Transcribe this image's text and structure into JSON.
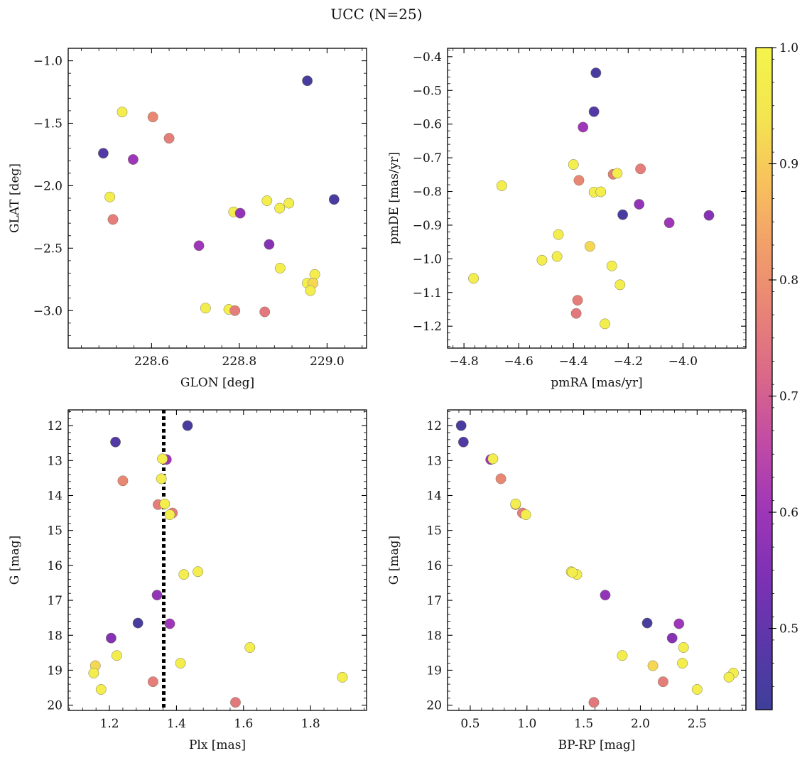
{
  "figure": {
    "title": "UCC (N=25)"
  },
  "colors": {
    "colormap": "plasma",
    "stops": [
      "#3e3f9a",
      "#5b37a9",
      "#7d31b4",
      "#9e36b8",
      "#c04aa6",
      "#d9678a",
      "#e88377",
      "#f29f6a",
      "#f8c25c",
      "#f3e64f",
      "#f4f44b"
    ],
    "reference_line": "#000000"
  },
  "chart_data": [
    {
      "type": "scatter",
      "xlabel": "GLON [deg]",
      "ylabel": "GLAT [deg]",
      "xlim": [
        228.41,
        229.09
      ],
      "ylim": [
        -3.3,
        -0.9
      ],
      "y_inverted": false,
      "xticks": [
        228.6,
        228.8,
        229.0
      ],
      "xtick_labels": [
        "228.6",
        "228.8",
        "229.0"
      ],
      "yticks": [
        -1.0,
        -1.5,
        -2.0,
        -2.5,
        -3.0
      ],
      "ytick_labels": [
        "−1.0",
        "−1.5",
        "−2.0",
        "−2.5",
        "−3.0"
      ],
      "x": [
        228.955,
        228.49,
        228.558,
        228.533,
        228.603,
        228.64,
        228.505,
        228.512,
        228.863,
        228.913,
        228.787,
        228.802,
        229.016,
        228.708,
        228.868,
        228.893,
        228.972,
        228.955,
        228.968,
        228.962,
        228.723,
        228.776,
        228.79,
        228.858,
        228.892
      ],
      "y": [
        -1.16,
        -1.74,
        -1.79,
        -1.41,
        -1.45,
        -1.62,
        -2.09,
        -2.27,
        -2.12,
        -2.14,
        -2.21,
        -2.22,
        -2.11,
        -2.48,
        -2.47,
        -2.66,
        -2.71,
        -2.78,
        -2.78,
        -2.84,
        -2.98,
        -2.99,
        -3.0,
        -3.01,
        -2.18
      ]
    },
    {
      "type": "scatter",
      "xlabel": "pmRA [mas/yr]",
      "ylabel": "pmDE [mas/yr]",
      "xlim": [
        -4.86,
        -3.77
      ],
      "ylim": [
        -1.265,
        -0.375
      ],
      "y_inverted": false,
      "xticks": [
        -4.8,
        -4.6,
        -4.4,
        -4.2,
        -4.0
      ],
      "xtick_labels": [
        "−4.8",
        "−4.6",
        "−4.4",
        "−4.2",
        "−4.0"
      ],
      "yticks": [
        -0.4,
        -0.5,
        -0.6,
        -0.7,
        -0.8,
        -0.9,
        -1.0,
        -1.1,
        -1.2
      ],
      "ytick_labels": [
        "−0.4",
        "−0.5",
        "−0.6",
        "−0.7",
        "−0.8",
        "−0.9",
        "−1.0",
        "−1.1",
        "−1.2"
      ],
      "x": [
        -4.318,
        -4.325,
        -4.365,
        -4.4,
        -4.38,
        -4.255,
        -4.24,
        -4.155,
        -4.662,
        -4.325,
        -4.3,
        -4.16,
        -4.22,
        -4.05,
        -3.905,
        -4.455,
        -4.46,
        -4.515,
        -4.34,
        -4.26,
        -4.765,
        -4.23,
        -4.385,
        -4.39,
        -4.285
      ],
      "y": [
        -0.448,
        -0.563,
        -0.609,
        -0.72,
        -0.767,
        -0.749,
        -0.746,
        -0.733,
        -0.783,
        -0.802,
        -0.801,
        -0.838,
        -0.869,
        -0.893,
        -0.871,
        -0.928,
        -0.993,
        -1.004,
        -0.963,
        -1.021,
        -1.058,
        -1.077,
        -1.123,
        -1.162,
        -1.193
      ]
    },
    {
      "type": "scatter",
      "xlabel": "Plx [mas]",
      "ylabel": "G [mag]",
      "xlim": [
        1.077,
        1.967
      ],
      "ylim": [
        11.55,
        20.15
      ],
      "y_inverted": true,
      "xticks": [
        1.2,
        1.4,
        1.6,
        1.8
      ],
      "xtick_labels": [
        "1.2",
        "1.4",
        "1.6",
        "1.8"
      ],
      "yticks": [
        12,
        13,
        14,
        15,
        16,
        17,
        18,
        19,
        20
      ],
      "ytick_labels": [
        "12",
        "13",
        "14",
        "15",
        "16",
        "17",
        "18",
        "19",
        "20"
      ],
      "reference_line_x": 1.362,
      "x": [
        1.433,
        1.218,
        1.37,
        1.355,
        1.24,
        1.345,
        1.365,
        1.388,
        1.38,
        1.464,
        1.422,
        1.342,
        1.285,
        1.38,
        1.205,
        1.222,
        1.619,
        1.412,
        1.158,
        1.153,
        1.895,
        1.175,
        1.33,
        1.576,
        1.358
      ],
      "y": [
        12.0,
        12.47,
        12.97,
        13.52,
        13.58,
        14.26,
        14.24,
        14.5,
        14.55,
        16.18,
        16.26,
        16.85,
        17.65,
        17.67,
        18.08,
        18.58,
        18.35,
        18.8,
        18.87,
        19.08,
        19.2,
        19.55,
        19.33,
        19.92,
        12.95
      ]
    },
    {
      "type": "scatter",
      "xlabel": "BP-RP [mag]",
      "ylabel": "G [mag]",
      "xlim": [
        0.3,
        2.93
      ],
      "ylim": [
        11.55,
        20.15
      ],
      "y_inverted": true,
      "xticks": [
        0.5,
        1.0,
        1.5,
        2.0,
        2.5
      ],
      "xtick_labels": [
        "0.5",
        "1.0",
        "1.5",
        "2.0",
        "2.5"
      ],
      "yticks": [
        12,
        13,
        14,
        15,
        16,
        17,
        18,
        19,
        20
      ],
      "ytick_labels": [
        "12",
        "13",
        "14",
        "15",
        "16",
        "17",
        "18",
        "19",
        "20"
      ],
      "x": [
        0.42,
        0.44,
        0.68,
        0.7,
        0.77,
        0.9,
        0.9,
        0.96,
        0.99,
        1.39,
        1.44,
        1.69,
        2.06,
        2.34,
        2.28,
        1.84,
        2.38,
        2.37,
        2.11,
        2.82,
        2.78,
        2.5,
        2.2,
        1.59,
        1.4
      ],
      "y": [
        12.0,
        12.47,
        12.97,
        12.95,
        13.52,
        14.26,
        14.24,
        14.5,
        14.55,
        16.18,
        16.26,
        16.85,
        17.65,
        17.67,
        18.08,
        18.58,
        18.35,
        18.8,
        18.87,
        19.08,
        19.2,
        19.55,
        19.33,
        19.92,
        16.2
      ]
    }
  ],
  "color_values": [
    0.45,
    0.47,
    0.6,
    0.97,
    0.78,
    0.76,
    0.97,
    0.76,
    0.97,
    0.97,
    0.97,
    0.58,
    0.45,
    0.6,
    0.56,
    0.97,
    0.97,
    0.97,
    0.92,
    0.97,
    0.97,
    0.97,
    0.76,
    0.75,
    0.97
  ],
  "colorbar": {
    "range": [
      0.43,
      1.0
    ],
    "ticks": [
      1.0,
      0.9,
      0.8,
      0.7,
      0.6,
      0.5
    ],
    "tick_labels": [
      "1.0",
      "0.9",
      "0.8",
      "0.7",
      "0.6",
      "0.5"
    ]
  }
}
